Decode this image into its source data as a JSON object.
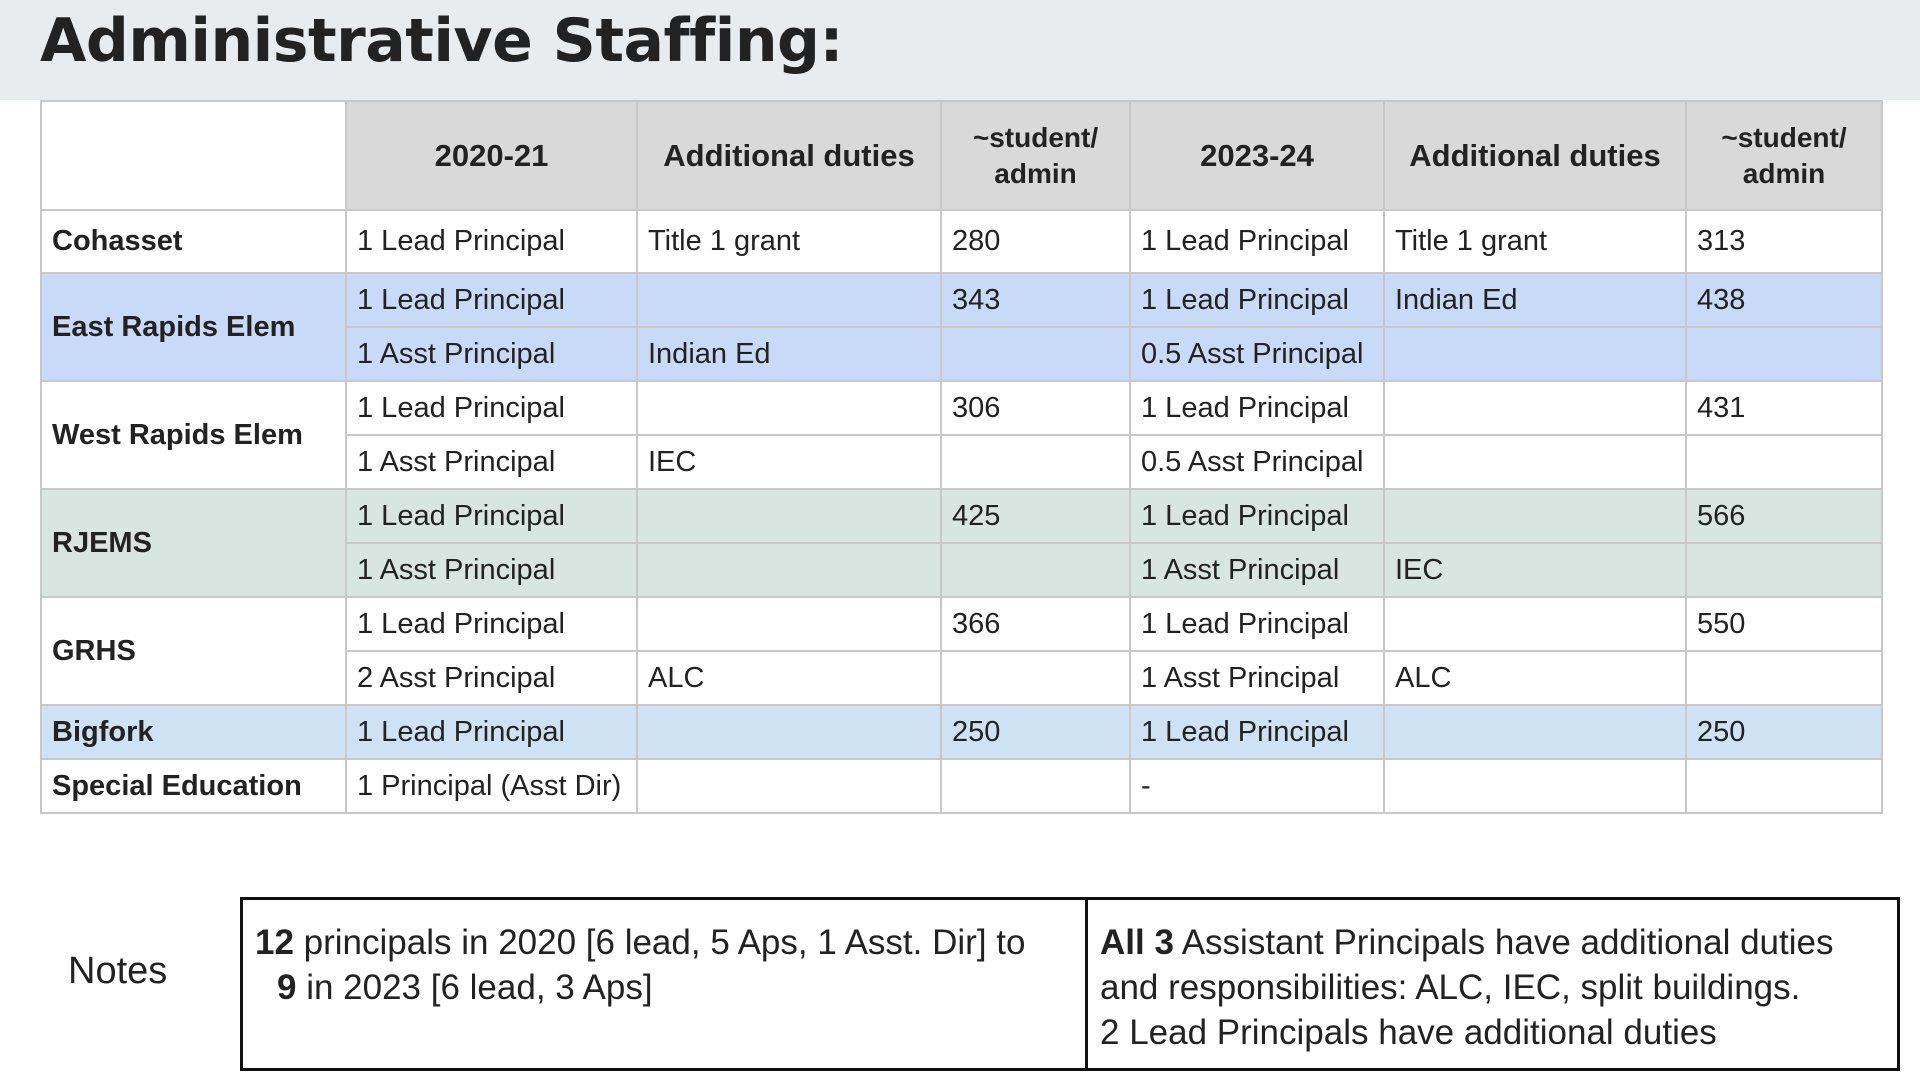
{
  "page": {
    "title": "Administrative Staffing:"
  },
  "table": {
    "headers": [
      "",
      "2020-21",
      "Additional duties",
      "~student/ admin",
      "2023-24",
      "Additional duties",
      "~student/ admin"
    ],
    "schools": [
      {
        "name": "Cohasset",
        "rows": [
          [
            "1 Lead Principal",
            "Title 1 grant",
            "280",
            "1 Lead Principal",
            "Title 1 grant",
            "313"
          ]
        ]
      },
      {
        "name": "East Rapids Elem",
        "rows": [
          [
            "1 Lead Principal",
            "",
            "343",
            "1 Lead Principal",
            "Indian Ed",
            "438"
          ],
          [
            "1 Asst Principal",
            "Indian Ed",
            "",
            "0.5 Asst Principal",
            "",
            ""
          ]
        ]
      },
      {
        "name": "West Rapids Elem",
        "rows": [
          [
            "1 Lead Principal",
            "",
            "306",
            "1 Lead Principal",
            "",
            "431"
          ],
          [
            "1 Asst Principal",
            "IEC",
            "",
            "0.5 Asst Principal",
            "",
            ""
          ]
        ]
      },
      {
        "name": "RJEMS",
        "rows": [
          [
            "1 Lead Principal",
            "",
            "425",
            "1 Lead Principal",
            "",
            "566"
          ],
          [
            "1 Asst Principal",
            "",
            "",
            "1 Asst Principal",
            "IEC",
            ""
          ]
        ]
      },
      {
        "name": "GRHS",
        "rows": [
          [
            "1 Lead Principal",
            "",
            "366",
            "1 Lead Principal",
            "",
            "550"
          ],
          [
            "2 Asst Principal",
            "ALC",
            "",
            "1 Asst Principal",
            "ALC",
            ""
          ]
        ]
      },
      {
        "name": "Bigfork",
        "rows": [
          [
            "1 Lead Principal",
            "",
            "250",
            "1 Lead Principal",
            "",
            "250"
          ]
        ]
      },
      {
        "name": "Special Education",
        "rows": [
          [
            "1 Principal (Asst Dir)",
            "",
            "",
            "-",
            "",
            ""
          ]
        ]
      }
    ]
  },
  "notes": {
    "label": "Notes",
    "left": {
      "num1": "12",
      "text1": " principals in 2020 [6 lead, 5 Aps, 1 Asst. Dir] to",
      "num2": "9",
      "text2": " in 2023 [6 lead, 3 Aps]"
    },
    "right": {
      "bold": "All 3",
      "text1": " Assistant Principals have additional duties",
      "text2": "and responsibilities: ALC, IEC, split buildings.",
      "text3": "2 Lead Principals have additional duties"
    }
  },
  "colors": {
    "header_bg": "#d9d9d9",
    "east_rapids_bg": "#c9daf8",
    "rjems_bg": "#d9e5e1",
    "bigfork_bg": "#cfe2f3",
    "title_bar_bg": "#e9ecee"
  }
}
